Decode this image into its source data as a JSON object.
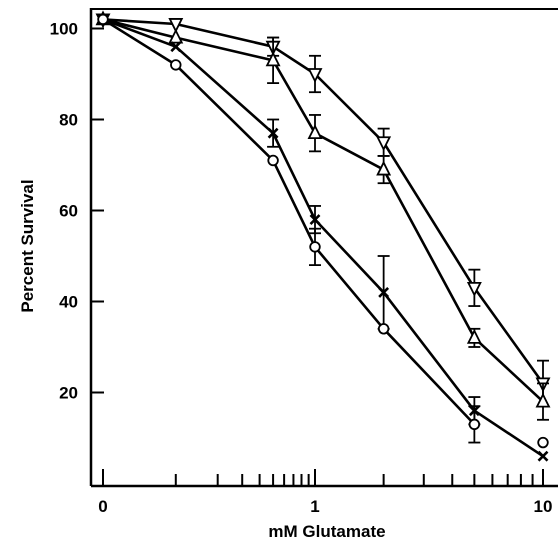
{
  "chart_data": {
    "type": "line",
    "title": "",
    "xlabel": "mM Glutamate",
    "ylabel": "Percent Survival",
    "x_scale": "log",
    "x_ticks": [
      {
        "value": 0.03,
        "label": "0"
      },
      {
        "value": 1,
        "label": "1"
      },
      {
        "value": 10,
        "label": "10"
      }
    ],
    "x_minor_ticks": [
      0.1,
      0.2,
      0.3,
      0.4,
      0.5,
      0.6,
      0.7,
      0.8,
      0.9,
      2,
      3,
      4,
      5,
      6,
      7,
      8,
      9
    ],
    "y_ticks": [
      20,
      40,
      60,
      80,
      100
    ],
    "ylim": [
      2,
      104
    ],
    "grid": false,
    "legend": "none",
    "series": [
      {
        "marker": "triangle-down",
        "x": [
          0.03,
          0.1,
          0.5,
          1,
          2,
          5,
          10
        ],
        "y": [
          102,
          101,
          96,
          90,
          75,
          43,
          22
        ],
        "err": [
          0,
          0,
          2,
          4,
          3,
          4,
          5
        ]
      },
      {
        "marker": "triangle-up",
        "x": [
          0.03,
          0.1,
          0.5,
          1,
          2,
          5,
          10
        ],
        "y": [
          102,
          98,
          93,
          77,
          69,
          32,
          18
        ],
        "err": [
          0,
          0,
          5,
          4,
          3,
          2,
          4
        ]
      },
      {
        "marker": "x",
        "x": [
          0.03,
          0.1,
          0.5,
          1,
          2,
          5,
          10
        ],
        "y": [
          102,
          96,
          77,
          58,
          42,
          16,
          6
        ],
        "err": [
          0,
          0,
          3,
          3,
          8,
          3,
          0
        ]
      },
      {
        "marker": "circle",
        "x": [
          0.03,
          0.1,
          0.5,
          1,
          2,
          5,
          10
        ],
        "y": [
          102,
          92,
          71,
          52,
          34,
          13,
          9
        ],
        "err": [
          0,
          0,
          0,
          4,
          0,
          4,
          0
        ],
        "connect_last": false
      }
    ]
  }
}
